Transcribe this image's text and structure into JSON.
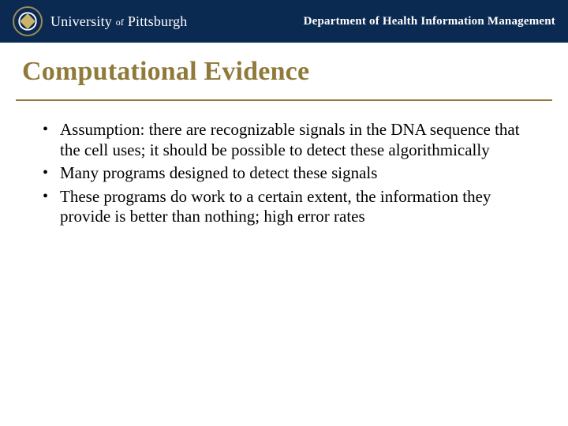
{
  "colors": {
    "header_bg": "#0b2a52",
    "title_color": "#8f7a3a",
    "rule_color": "#8f7a3a",
    "body_text": "#000000",
    "header_text": "#ffffff"
  },
  "header": {
    "wordmark_prefix": "University",
    "wordmark_of": "of",
    "wordmark_suffix": "Pittsburgh",
    "department": "Department of Health Information Management"
  },
  "slide": {
    "title": "Computational Evidence",
    "bullets": [
      "Assumption: there are recognizable signals in the DNA sequence that the cell uses; it should be possible to detect these algorithmically",
      "Many programs designed to detect these signals",
      "These programs do work to a certain extent, the information they provide is better than nothing; high error rates"
    ]
  }
}
